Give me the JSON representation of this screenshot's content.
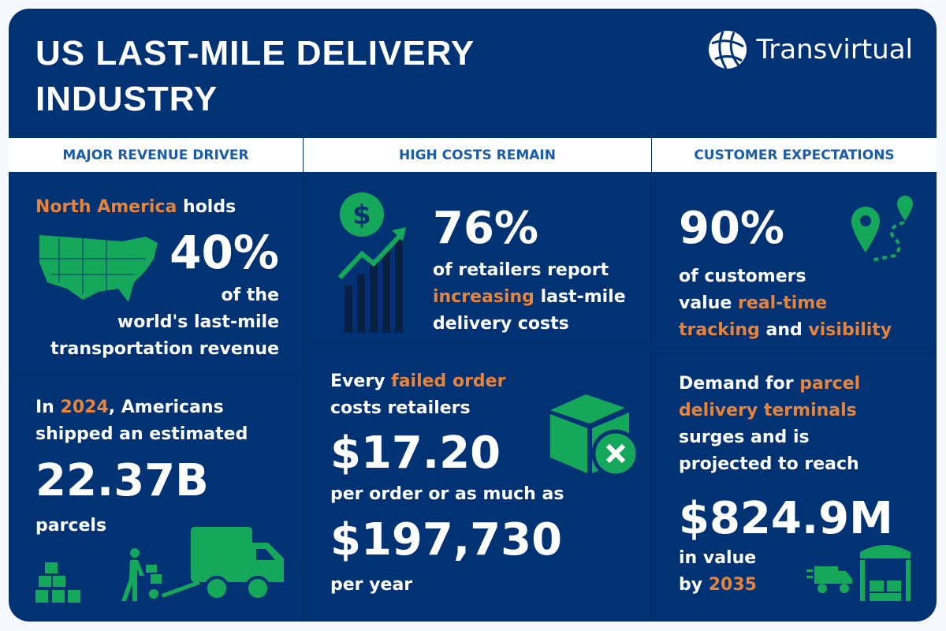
{
  "title_line1": "US LAST-MILE DELIVERY",
  "title_line2": "INDUSTRY",
  "brand": "Transvirtual",
  "columns": [
    "MAJOR REVENUE DRIVER",
    "HIGH COSTS REMAIN",
    "CUSTOMER EXPECTATIONS"
  ],
  "c1a": {
    "h": "North America",
    "t1": " holds",
    "big": "40%",
    "l1": "of the",
    "l2": "world's last-mile",
    "l3": "transportation revenue"
  },
  "c1b": {
    "p1": "In ",
    "year": "2024",
    "p2": ", Americans",
    "l2": "shipped an estimated",
    "big": "22.37B",
    "l3": "parcels"
  },
  "c2a": {
    "big": "76%",
    "l1": "of retailers report",
    "hl": "increasing",
    "l2b": " last-mile",
    "l3": "delivery costs"
  },
  "c2b": {
    "p1": "Every ",
    "hl": "failed order",
    "l2": "costs retailers",
    "big1": "$17.20",
    "l3": "per order or as much as",
    "big2": "$197,730",
    "l4": "per year"
  },
  "c3a": {
    "big": "90%",
    "l1": "of customers",
    "l2a": "value ",
    "hl1": "real-time",
    "hl2": "tracking",
    "l3b": " and ",
    "hl3": "visibility"
  },
  "c3b": {
    "p1": "Demand for ",
    "hl1": "parcel",
    "hl2": "delivery terminals",
    "l3": "surges and is",
    "l4": "projected to reach",
    "big": "$824.9M",
    "l5": "in value",
    "l6a": "by ",
    "year": "2035"
  },
  "colors": {
    "background": "#003274",
    "accent": "#e8843a",
    "icon": "#16a85a",
    "header_text": "#1a5ca8"
  }
}
